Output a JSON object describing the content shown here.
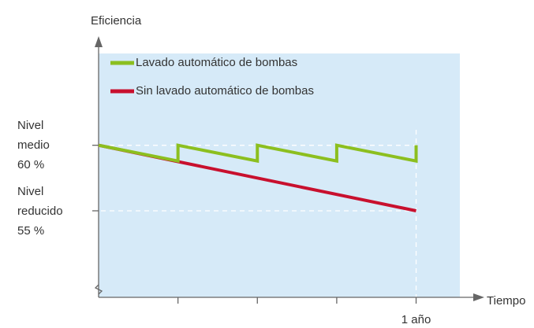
{
  "chart_data": {
    "type": "line",
    "ylabel": "Eficiencia",
    "xlabel": "Tiempo",
    "series": [
      {
        "name": "Lavado automático de bombas",
        "color": "#8cbf1f",
        "x": [
          0,
          0.25,
          0.25,
          0.5,
          0.5,
          0.75,
          0.75,
          1,
          1
        ],
        "values": [
          60,
          58.8,
          60,
          58.8,
          60,
          58.8,
          60,
          58.8,
          60
        ]
      },
      {
        "name": "Sin lavado automático de bombas",
        "color": "#c8102e",
        "x": [
          0,
          1
        ],
        "values": [
          60,
          55
        ]
      }
    ],
    "xlim": [
      0,
      1.18
    ],
    "ylim": [
      48.4,
      67
    ],
    "xticks": [
      {
        "value": 0.25,
        "label": null
      },
      {
        "value": 0.5,
        "label": null
      },
      {
        "value": 0.75,
        "label": null
      },
      {
        "value": 1,
        "label": "1 año"
      }
    ],
    "yticks": [
      {
        "value": 55,
        "label": "Nivel\nreducido\n55 %"
      },
      {
        "value": 60,
        "label": "Nivel\nmedio\n60 %"
      }
    ],
    "grid": true,
    "legend": "upper left",
    "background": "#d6eaf8"
  }
}
